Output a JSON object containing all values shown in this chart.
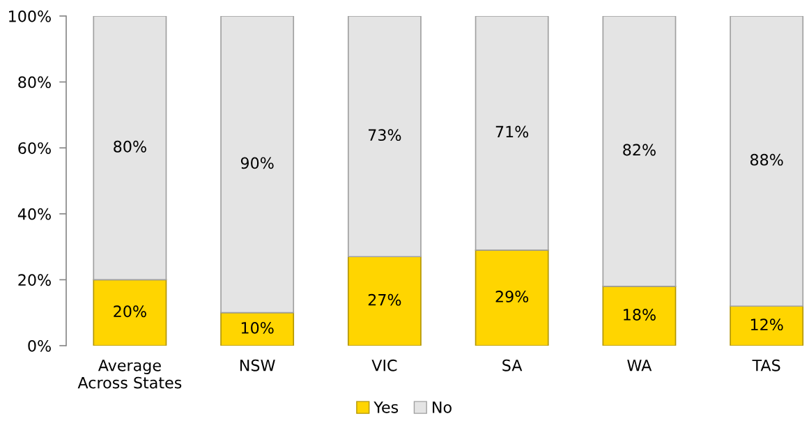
{
  "chart_data": {
    "type": "bar",
    "stacked": true,
    "categories": [
      "Average\nAcross States",
      "NSW",
      "VIC",
      "SA",
      "WA",
      "TAS"
    ],
    "series": [
      {
        "name": "Yes",
        "color": "#ffd500",
        "values": [
          20,
          10,
          27,
          29,
          18,
          12
        ],
        "value_labels": [
          "20%",
          "10%",
          "27%",
          "29%",
          "18%",
          "12%"
        ]
      },
      {
        "name": "No",
        "color": "#e4e4e4",
        "values": [
          80,
          90,
          73,
          71,
          82,
          88
        ],
        "value_labels": [
          "80%",
          "90%",
          "73%",
          "71%",
          "82%",
          "88%"
        ]
      }
    ],
    "ylim": [
      0,
      100
    ],
    "yticks": [
      {
        "value": 0,
        "label": "0%"
      },
      {
        "value": 20,
        "label": "20%"
      },
      {
        "value": 40,
        "label": "40%"
      },
      {
        "value": 60,
        "label": "60%"
      },
      {
        "value": 80,
        "label": "80%"
      },
      {
        "value": 100,
        "label": "100%"
      }
    ],
    "grid": false,
    "legend": "bottom"
  }
}
